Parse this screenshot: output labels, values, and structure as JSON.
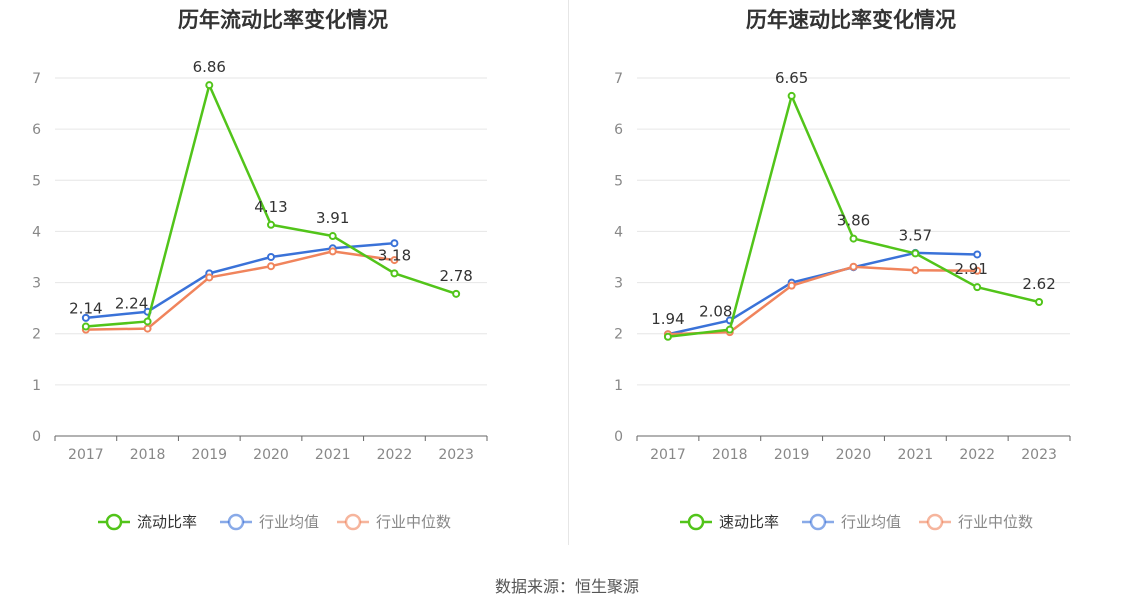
{
  "footer": {
    "source": "数据来源：恒生聚源"
  },
  "chart_data": [
    {
      "type": "line",
      "title": "历年流动比率变化情况",
      "categories": [
        "2017",
        "2018",
        "2019",
        "2020",
        "2021",
        "2022",
        "2023"
      ],
      "ylim": [
        0,
        7
      ],
      "yticks": [
        0,
        1,
        2,
        3,
        4,
        5,
        6,
        7
      ],
      "grid": true,
      "legend_position": "bottom",
      "series": [
        {
          "name": "流动比率",
          "color": "#52c41a",
          "values": [
            2.14,
            2.24,
            6.86,
            4.13,
            3.91,
            3.18,
            2.78
          ],
          "labels": [
            "2.14",
            "2.24",
            "6.86",
            "4.13",
            "3.91",
            "3.18",
            "2.78"
          ]
        },
        {
          "name": "行业均值",
          "color": "#3a72d8",
          "values": [
            2.31,
            2.43,
            3.18,
            3.5,
            3.67,
            3.77,
            null
          ]
        },
        {
          "name": "行业中位数",
          "color": "#f0845c",
          "values": [
            2.08,
            2.1,
            3.1,
            3.32,
            3.61,
            3.44,
            null
          ]
        }
      ]
    },
    {
      "type": "line",
      "title": "历年速动比率变化情况",
      "categories": [
        "2017",
        "2018",
        "2019",
        "2020",
        "2021",
        "2022",
        "2023"
      ],
      "ylim": [
        0,
        7
      ],
      "yticks": [
        0,
        1,
        2,
        3,
        4,
        5,
        6,
        7
      ],
      "grid": true,
      "legend_position": "bottom",
      "series": [
        {
          "name": "速动比率",
          "color": "#52c41a",
          "values": [
            1.94,
            2.08,
            6.65,
            3.86,
            3.57,
            2.91,
            2.62
          ],
          "labels": [
            "1.94",
            "2.08",
            "6.65",
            "3.86",
            "3.57",
            "2.91",
            "2.62"
          ]
        },
        {
          "name": "行业均值",
          "color": "#3a72d8",
          "values": [
            1.99,
            2.26,
            3.0,
            3.3,
            3.58,
            3.55,
            null
          ]
        },
        {
          "name": "行业中位数",
          "color": "#f0845c",
          "values": [
            1.99,
            2.03,
            2.94,
            3.31,
            3.24,
            3.23,
            null
          ]
        }
      ]
    }
  ]
}
